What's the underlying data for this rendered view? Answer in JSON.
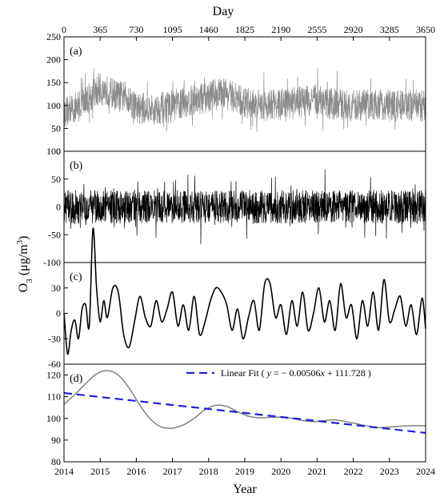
{
  "chart_data": [
    {
      "type": "line",
      "panel_label": "(a)",
      "top_xlabel": "Day",
      "top_xticks": [
        "0",
        "365",
        "730",
        "1095",
        "1460",
        "1825",
        "2190",
        "2555",
        "2920",
        "3285",
        "3650"
      ],
      "ylim": [
        0,
        250
      ],
      "yticks": [
        "0",
        "50",
        "100",
        "150",
        "200",
        "250"
      ],
      "series": [
        {
          "color": "#8c8c8c",
          "trend_x": [
            0,
            150,
            300,
            365,
            450,
            550,
            650,
            730,
            900,
            1100,
            1300,
            1460,
            1600,
            1700,
            1825,
            2000,
            2190,
            2400,
            2555,
            2700,
            2920,
            3100,
            3285,
            3450,
            3650
          ],
          "trend_y": [
            85,
            100,
            125,
            135,
            130,
            120,
            118,
            95,
            90,
            100,
            110,
            120,
            130,
            118,
            105,
            100,
            102,
            108,
            112,
            104,
            100,
            102,
            100,
            102,
            98
          ],
          "noise_amplitude": 35
        }
      ]
    },
    {
      "type": "line",
      "panel_label": "(b)",
      "ylim": [
        -100,
        100
      ],
      "yticks": [
        "-100",
        "-50",
        "0",
        "50",
        "100"
      ],
      "series": [
        {
          "color": "#000000",
          "mean": 0,
          "noise_amplitude": 30
        }
      ]
    },
    {
      "type": "line",
      "panel_label": "(c)",
      "ylim": [
        -60,
        60
      ],
      "yticks": [
        "-60",
        "-30",
        "0",
        "30"
      ],
      "series": [
        {
          "color": "#000000",
          "x": [
            2014.0,
            2014.1,
            2014.2,
            2014.3,
            2014.4,
            2014.5,
            2014.6,
            2014.7,
            2014.8,
            2014.9,
            2015.0,
            2015.1,
            2015.2,
            2015.35,
            2015.5,
            2015.65,
            2015.8,
            2015.95,
            2016.1,
            2016.25,
            2016.4,
            2016.55,
            2016.7,
            2016.85,
            2017.0,
            2017.15,
            2017.3,
            2017.45,
            2017.6,
            2017.75,
            2017.9,
            2018.05,
            2018.2,
            2018.35,
            2018.5,
            2018.65,
            2018.8,
            2018.95,
            2019.1,
            2019.25,
            2019.4,
            2019.55,
            2019.7,
            2019.85,
            2020.0,
            2020.15,
            2020.3,
            2020.45,
            2020.6,
            2020.75,
            2020.9,
            2021.05,
            2021.2,
            2021.35,
            2021.5,
            2021.65,
            2021.8,
            2021.95,
            2022.1,
            2022.25,
            2022.4,
            2022.55,
            2022.7,
            2022.85,
            2023.0,
            2023.15,
            2023.3,
            2023.45,
            2023.6,
            2023.75,
            2023.9,
            2024.0
          ],
          "y": [
            0,
            -48,
            -20,
            -8,
            -30,
            5,
            10,
            -15,
            100,
            30,
            -10,
            15,
            -5,
            30,
            25,
            -25,
            -40,
            -10,
            20,
            -5,
            -15,
            15,
            -10,
            5,
            25,
            -15,
            10,
            -20,
            20,
            -25,
            -10,
            15,
            30,
            25,
            10,
            -20,
            5,
            -30,
            -5,
            15,
            -20,
            35,
            35,
            -5,
            10,
            -25,
            15,
            -15,
            25,
            -20,
            0,
            30,
            -10,
            15,
            -20,
            35,
            -5,
            10,
            -30,
            15,
            -15,
            25,
            -20,
            40,
            -10,
            5,
            20,
            -15,
            10,
            -25,
            18,
            -18
          ]
        }
      ]
    },
    {
      "type": "line",
      "panel_label": "(d)",
      "xlabel": "Year",
      "xticks": [
        "2014",
        "2015",
        "2016",
        "2017",
        "2018",
        "2019",
        "2020",
        "2021",
        "2022",
        "2023",
        "2024"
      ],
      "xlim": [
        2014,
        2024
      ],
      "ylim": [
        80,
        125
      ],
      "yticks": [
        "80",
        "90",
        "100",
        "110",
        "120"
      ],
      "series": [
        {
          "kind": "smooth",
          "color": "#808080",
          "x": [
            2014.0,
            2014.3,
            2014.6,
            2014.9,
            2015.2,
            2015.5,
            2015.8,
            2016.1,
            2016.4,
            2016.7,
            2017.0,
            2017.3,
            2017.6,
            2017.9,
            2018.2,
            2018.5,
            2018.8,
            2019.1,
            2019.4,
            2019.7,
            2020.0,
            2020.3,
            2020.6,
            2020.9,
            2021.2,
            2021.5,
            2021.8,
            2022.1,
            2022.4,
            2022.7,
            2023.0,
            2023.3,
            2023.6,
            2024.0
          ],
          "y": [
            106.5,
            111,
            116,
            120.5,
            122,
            120,
            114,
            106,
            99.5,
            96,
            95.5,
            97,
            100,
            104,
            106,
            105.5,
            103,
            101,
            100.3,
            100.5,
            100.5,
            100,
            99,
            98.5,
            99,
            99.3,
            98.5,
            97.5,
            96.5,
            95.8,
            96,
            96.4,
            96.6,
            96.6
          ]
        },
        {
          "kind": "fit",
          "name": "Linear Fit ( y = − 0.00506x + 111.728 )",
          "legend_text": "Linear Fit ( y = − 0.00506x + 111.728 )",
          "color": "#1f1fd6",
          "x": [
            2014,
            2024
          ],
          "y": [
            111.7,
            93.3
          ]
        }
      ]
    }
  ],
  "ylabel": "O3 (μg/m3)"
}
